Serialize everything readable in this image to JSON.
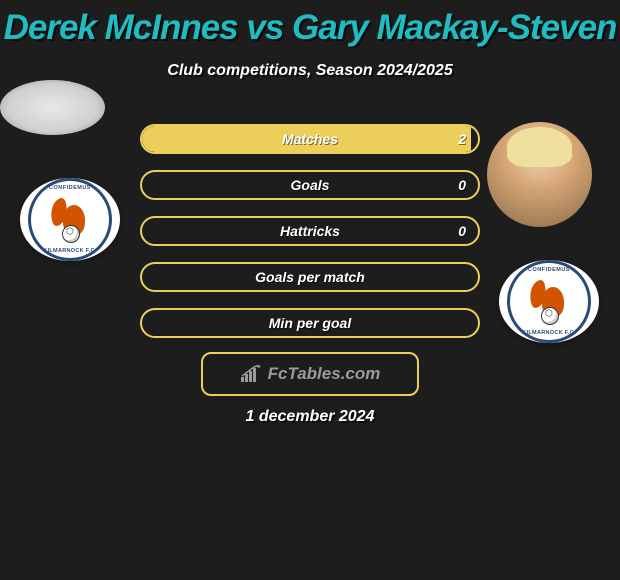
{
  "header": {
    "title": "Derek McInnes vs Gary Mackay-Steven",
    "subtitle": "Club competitions, Season 2024/2025"
  },
  "stats": [
    {
      "label": "Matches",
      "value": "2",
      "fill_pct": 98,
      "fill_color": "#ecce5a"
    },
    {
      "label": "Goals",
      "value": "0",
      "fill_pct": 0,
      "fill_color": "#ecce5a"
    },
    {
      "label": "Hattricks",
      "value": "0",
      "fill_pct": 0,
      "fill_color": "#ecce5a"
    },
    {
      "label": "Goals per match",
      "value": "",
      "fill_pct": 0,
      "fill_color": "#ecce5a"
    },
    {
      "label": "Min per goal",
      "value": "",
      "fill_pct": 0,
      "fill_color": "#ecce5a"
    }
  ],
  "colors": {
    "background": "#1d1d1d",
    "accent_teal": "#21bbc2",
    "bar_border": "#ecce5a",
    "text_white": "#ffffff",
    "logo_grey": "#9a9a9a",
    "badge_ring": "#2a4a7a",
    "squirrel": "#d35400"
  },
  "badge": {
    "text_top": "CONFIDEMUS",
    "text_bottom": "KILMARNOCK F.C."
  },
  "logo": {
    "text": "FcTables.com"
  },
  "footer": {
    "date": "1 december 2024"
  }
}
